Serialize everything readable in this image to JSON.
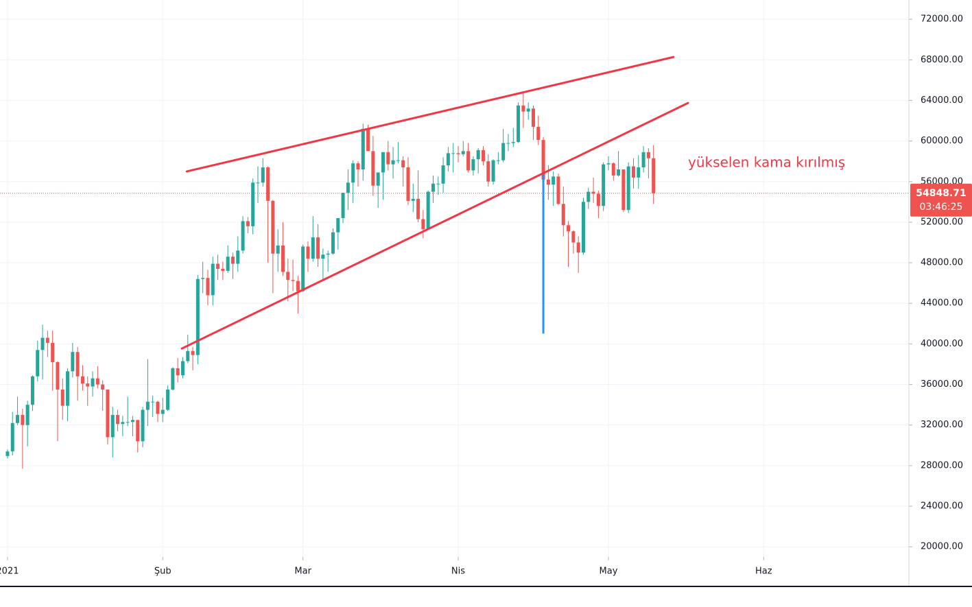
{
  "chart_data": {
    "type": "candlestick",
    "annotation": "yükselen kama kırılmış",
    "countdown": "03:46:25",
    "up_color": "#26a69a",
    "down_color": "#ef5350",
    "grid": true,
    "xlim": [
      -1.5,
      180
    ],
    "xticks": [
      {
        "value": 0,
        "label": "2021"
      },
      {
        "value": 31,
        "label": "Şub"
      },
      {
        "value": 59,
        "label": "Mar"
      },
      {
        "value": 90,
        "label": "Nis"
      },
      {
        "value": 120,
        "label": "May"
      },
      {
        "value": 151,
        "label": "Haz"
      }
    ],
    "ylim": [
      19000,
      73900
    ],
    "yticks": [
      {
        "value": 20000,
        "label": "20000.00"
      },
      {
        "value": 24000,
        "label": "24000.00"
      },
      {
        "value": 28000,
        "label": "28000.00"
      },
      {
        "value": 32000,
        "label": "32000.00"
      },
      {
        "value": 36000,
        "label": "36000.00"
      },
      {
        "value": 40000,
        "label": "40000.00"
      },
      {
        "value": 44000,
        "label": "44000.00"
      },
      {
        "value": 48000,
        "label": "48000.00"
      },
      {
        "value": 52000,
        "label": "52000.00"
      },
      {
        "value": 56000,
        "label": "56000.00"
      },
      {
        "value": 60000,
        "label": "60000.00"
      },
      {
        "value": 64000,
        "label": "64000.00"
      },
      {
        "value": 68000,
        "label": "68000.00"
      },
      {
        "value": 72000,
        "label": "72000.00"
      }
    ],
    "open": [
      28950,
      29400,
      32200,
      33000,
      32000,
      34000,
      36800,
      39400,
      40600,
      40100,
      38200,
      35500,
      33900,
      37300,
      39200,
      36800,
      36100,
      35800,
      36600,
      36000,
      35500,
      30800,
      33000,
      32100,
      32300,
      32300,
      32500,
      30400,
      33500,
      34300,
      34300,
      33100,
      33500,
      35500,
      37600,
      36900,
      38300,
      39300,
      38900,
      46400,
      46500,
      44800,
      47900,
      47400,
      47200,
      48600,
      47900,
      49200,
      52100,
      51600,
      55900,
      55900,
      57400,
      54100,
      48900,
      49700,
      47100,
      46300,
      46200,
      45200,
      49600,
      48400,
      50500,
      48400,
      48800,
      48900,
      51000,
      52400,
      54900,
      55900,
      57800,
      57200,
      61200,
      59000,
      55600,
      56900,
      58900,
      57700,
      58100,
      58100,
      57400,
      54100,
      54300,
      52300,
      51300,
      55000,
      55800,
      55800,
      57600,
      58800,
      58800,
      58700,
      59000,
      57100,
      58200,
      59100,
      58000,
      56000,
      58100,
      58100,
      59800,
      59800,
      59900,
      63500,
      62900,
      63200,
      61400,
      60100,
      56200,
      55700,
      56500,
      53800,
      51700,
      51100,
      50000,
      49000,
      54000,
      55000,
      54800,
      53600,
      57700,
      57800,
      56600,
      57200,
      53200,
      57500,
      56400,
      57400,
      58900,
      58300
    ],
    "high": [
      29600,
      33300,
      34800,
      33600,
      34400,
      36900,
      40300,
      41900,
      41300,
      41300,
      38300,
      36600,
      37600,
      40100,
      39700,
      37900,
      36800,
      37300,
      37800,
      36400,
      35500,
      33800,
      33500,
      32900,
      34800,
      32900,
      32500,
      33800,
      38500,
      34900,
      34400,
      34700,
      35900,
      37700,
      38600,
      38700,
      40900,
      39700,
      46800,
      48100,
      47300,
      48600,
      48800,
      48100,
      49700,
      49000,
      50600,
      52600,
      52500,
      56300,
      57500,
      58300,
      57500,
      54200,
      51300,
      52000,
      48400,
      48300,
      46700,
      49800,
      50100,
      52600,
      51800,
      49400,
      49200,
      51400,
      52400,
      54900,
      57200,
      58100,
      58000,
      61700,
      61600,
      60500,
      56900,
      58900,
      60000,
      59400,
      59900,
      58500,
      58400,
      55800,
      57100,
      53200,
      55100,
      56600,
      56500,
      58400,
      59400,
      59800,
      59500,
      60000,
      59800,
      58500,
      59300,
      59500,
      58700,
      58200,
      58900,
      61200,
      60700,
      61300,
      63800,
      64900,
      63800,
      63500,
      62500,
      60400,
      57600,
      57000,
      56800,
      55500,
      52100,
      51200,
      50600,
      54400,
      55400,
      56400,
      55100,
      57900,
      58500,
      57900,
      59000,
      57200,
      57900,
      58300,
      58600,
      59500,
      59300,
      59600
    ],
    "low": [
      28700,
      29000,
      32000,
      27700,
      29900,
      33400,
      36300,
      36500,
      38700,
      35400,
      30400,
      32500,
      32400,
      36700,
      34400,
      35400,
      33900,
      34800,
      35600,
      33400,
      30100,
      28800,
      31400,
      30900,
      31900,
      30900,
      29300,
      29800,
      31900,
      32800,
      32300,
      32300,
      33400,
      35400,
      36200,
      36600,
      38100,
      37400,
      38000,
      45000,
      43800,
      43800,
      46300,
      46300,
      47000,
      46400,
      47100,
      48900,
      50900,
      50800,
      53900,
      55500,
      48000,
      45000,
      47100,
      46700,
      44200,
      45200,
      43000,
      45100,
      47100,
      48100,
      47600,
      46300,
      47100,
      48800,
      49300,
      51900,
      53200,
      53900,
      55500,
      56100,
      59000,
      54600,
      53400,
      54200,
      57100,
      56300,
      57800,
      55500,
      53700,
      53000,
      52000,
      50400,
      51300,
      53900,
      54700,
      54900,
      57000,
      56900,
      57900,
      58500,
      56900,
      56600,
      56800,
      57600,
      55500,
      55700,
      57700,
      57900,
      59000,
      59400,
      59800,
      61300,
      62100,
      60100,
      59600,
      51500,
      54200,
      53600,
      53700,
      50600,
      47600,
      48900,
      47000,
      48800,
      53300,
      53900,
      52400,
      53100,
      57100,
      56100,
      56500,
      53000,
      52900,
      55300,
      55300,
      56900,
      56300,
      53800
    ],
    "close": [
      29400,
      32200,
      33000,
      32000,
      34000,
      36800,
      39400,
      40600,
      40100,
      38200,
      35500,
      33900,
      37300,
      39200,
      36800,
      36100,
      35800,
      36600,
      36000,
      35500,
      30800,
      33000,
      32100,
      32300,
      32300,
      32500,
      30400,
      33500,
      34300,
      34300,
      33100,
      33500,
      35500,
      37600,
      36900,
      38300,
      39300,
      38900,
      46400,
      46500,
      44800,
      47900,
      47400,
      47200,
      48600,
      47900,
      49200,
      52100,
      51600,
      55900,
      55900,
      57400,
      54100,
      48900,
      49700,
      47100,
      46300,
      46200,
      45200,
      49600,
      48400,
      50500,
      48400,
      48800,
      48900,
      51000,
      52400,
      54900,
      55900,
      57800,
      57200,
      61200,
      59000,
      55600,
      56900,
      58900,
      57700,
      58100,
      58100,
      57400,
      54100,
      54300,
      52300,
      51300,
      55000,
      55800,
      55800,
      57600,
      58800,
      58800,
      58700,
      59000,
      57100,
      58200,
      59100,
      58000,
      56000,
      58100,
      58100,
      59800,
      59800,
      59900,
      63500,
      62900,
      63200,
      61400,
      60100,
      56200,
      55700,
      56500,
      53800,
      51700,
      51100,
      50000,
      49000,
      54000,
      55000,
      54800,
      53600,
      57700,
      57800,
      56600,
      57200,
      53200,
      57500,
      56400,
      57400,
      58900,
      58300,
      54848.71
    ],
    "trendlines": [
      {
        "color": "#f23645",
        "points": [
          [
            35.8,
            57000
          ],
          [
            133,
            68280
          ]
        ]
      },
      {
        "color": "#f23645",
        "points": [
          [
            34.8,
            39540
          ],
          [
            135.9,
            63750
          ]
        ]
      },
      {
        "color": "#2196f3",
        "points": [
          [
            107,
            56600
          ],
          [
            107,
            41100
          ]
        ]
      }
    ]
  }
}
